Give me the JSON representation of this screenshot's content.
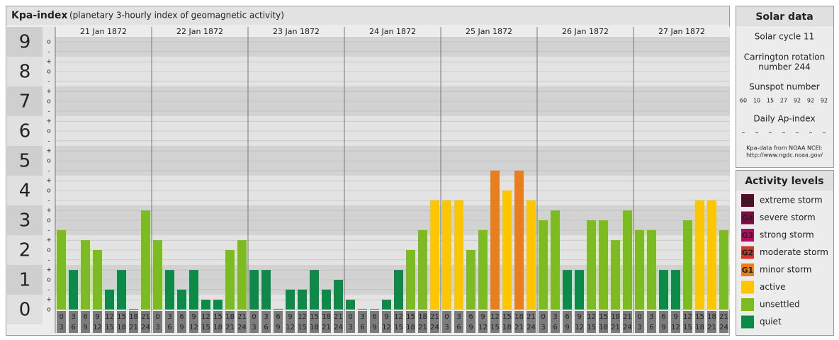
{
  "chart_data": {
    "type": "bar",
    "title": "Kpa-index",
    "subtitle": "(planetary 3-hourly index of geomagnetic activity)",
    "ylim": [
      0,
      9
    ],
    "yticks": [
      0,
      1,
      2,
      3,
      4,
      5,
      6,
      7,
      8,
      9
    ],
    "minor_yticks": [
      {
        "value": 0,
        "label": "o"
      },
      {
        "value": 0.33,
        "label": "+"
      },
      {
        "value": 0.67,
        "label": "-"
      },
      {
        "value": 1,
        "label": "o"
      },
      {
        "value": 1.33,
        "label": "+"
      },
      {
        "value": 1.67,
        "label": "-"
      },
      {
        "value": 2,
        "label": "o"
      },
      {
        "value": 2.33,
        "label": "+"
      },
      {
        "value": 2.67,
        "label": "-"
      },
      {
        "value": 3,
        "label": "o"
      },
      {
        "value": 3.33,
        "label": "+"
      },
      {
        "value": 3.67,
        "label": "-"
      },
      {
        "value": 4,
        "label": "o"
      },
      {
        "value": 4.33,
        "label": "+"
      },
      {
        "value": 4.67,
        "label": "-"
      },
      {
        "value": 5,
        "label": "o"
      },
      {
        "value": 5.33,
        "label": "+"
      },
      {
        "value": 5.67,
        "label": "-"
      },
      {
        "value": 6,
        "label": "o"
      },
      {
        "value": 6.33,
        "label": "+"
      },
      {
        "value": 6.67,
        "label": "-"
      },
      {
        "value": 7,
        "label": "o"
      },
      {
        "value": 7.33,
        "label": "+"
      },
      {
        "value": 7.67,
        "label": "-"
      },
      {
        "value": 8,
        "label": "o"
      },
      {
        "value": 8.33,
        "label": "+"
      },
      {
        "value": 8.67,
        "label": "-"
      },
      {
        "value": 9,
        "label": "o"
      }
    ],
    "grid": true,
    "hour_labels": [
      [
        0,
        3
      ],
      [
        3,
        6
      ],
      [
        6,
        9
      ],
      [
        9,
        12
      ],
      [
        12,
        15
      ],
      [
        15,
        18
      ],
      [
        18,
        21
      ],
      [
        21,
        24
      ]
    ],
    "series": [
      {
        "name": "21 Jan 1872",
        "values": [
          2.67,
          1.33,
          2.33,
          2,
          0.67,
          1.33,
          0,
          3.33
        ],
        "colors": [
          "#7cbb22",
          "#0d8a47",
          "#7cbb22",
          "#7cbb22",
          "#0d8a47",
          "#0d8a47",
          "#0d8a47",
          "#7cbb22"
        ]
      },
      {
        "name": "22 Jan 1872",
        "values": [
          2.33,
          1.33,
          0.67,
          1.33,
          0.33,
          0.33,
          2,
          2.33
        ],
        "colors": [
          "#7cbb22",
          "#0d8a47",
          "#0d8a47",
          "#0d8a47",
          "#0d8a47",
          "#0d8a47",
          "#7cbb22",
          "#7cbb22"
        ]
      },
      {
        "name": "23 Jan 1872",
        "values": [
          1.33,
          1.33,
          0,
          0.67,
          0.67,
          1.33,
          0.67,
          1
        ],
        "colors": [
          "#0d8a47",
          "#0d8a47",
          "#0d8a47",
          "#0d8a47",
          "#0d8a47",
          "#0d8a47",
          "#0d8a47",
          "#0d8a47"
        ]
      },
      {
        "name": "24 Jan 1872",
        "values": [
          0.33,
          0,
          0,
          0.33,
          1.33,
          2,
          2.67,
          3.67
        ],
        "colors": [
          "#0d8a47",
          "#0d8a47",
          "#0d8a47",
          "#0d8a47",
          "#0d8a47",
          "#7cbb22",
          "#7cbb22",
          "#fcc600"
        ]
      },
      {
        "name": "25 Jan 1872",
        "values": [
          3.67,
          3.67,
          2,
          2.67,
          4.67,
          4,
          4.67,
          3.67
        ],
        "colors": [
          "#fcc600",
          "#fcc600",
          "#7cbb22",
          "#7cbb22",
          "#e87e1c",
          "#fcc600",
          "#e87e1c",
          "#fcc600"
        ]
      },
      {
        "name": "26 Jan 1872",
        "values": [
          3,
          3.33,
          1.33,
          1.33,
          3,
          3,
          2.33,
          3.33
        ],
        "colors": [
          "#7cbb22",
          "#7cbb22",
          "#0d8a47",
          "#0d8a47",
          "#7cbb22",
          "#7cbb22",
          "#7cbb22",
          "#7cbb22"
        ]
      },
      {
        "name": "27 Jan 1872",
        "values": [
          2.67,
          2.67,
          1.33,
          1.33,
          3,
          3.67,
          3.67,
          2.67
        ],
        "colors": [
          "#7cbb22",
          "#7cbb22",
          "#0d8a47",
          "#0d8a47",
          "#7cbb22",
          "#fcc600",
          "#fcc600",
          "#7cbb22"
        ]
      }
    ]
  },
  "solar": {
    "title": "Solar data",
    "cycle": "Solar cycle 11",
    "carrington": [
      "Carrington rotation",
      "number 244"
    ],
    "sunspot_title": "Sunspot number",
    "sunspots": [
      60,
      10,
      15,
      27,
      92,
      92,
      92
    ],
    "ap_title": "Daily Ap-index",
    "ap": [
      "–",
      "–",
      "–",
      "–",
      "–",
      "–",
      "–"
    ],
    "source": [
      "Kpa-data from NOAA NCEI:",
      "http://www.ngdc.noaa.gov/"
    ]
  },
  "levels": {
    "title": "Activity levels",
    "items": [
      {
        "badge": "G5",
        "name": "extreme storm",
        "color": "#5b0a2a"
      },
      {
        "badge": "G4",
        "name": "severe storm",
        "color": "#7d0d45"
      },
      {
        "badge": "G3",
        "name": "strong storm",
        "color": "#b01060"
      },
      {
        "badge": "G2",
        "name": "moderate storm",
        "color": "#d0382a"
      },
      {
        "badge": "G1",
        "name": "minor storm",
        "color": "#e87e1c"
      },
      {
        "name": "active",
        "color": "#fcc600"
      },
      {
        "name": "unsettled",
        "color": "#7cbb22"
      },
      {
        "name": "quiet",
        "color": "#0d8a47"
      }
    ]
  }
}
